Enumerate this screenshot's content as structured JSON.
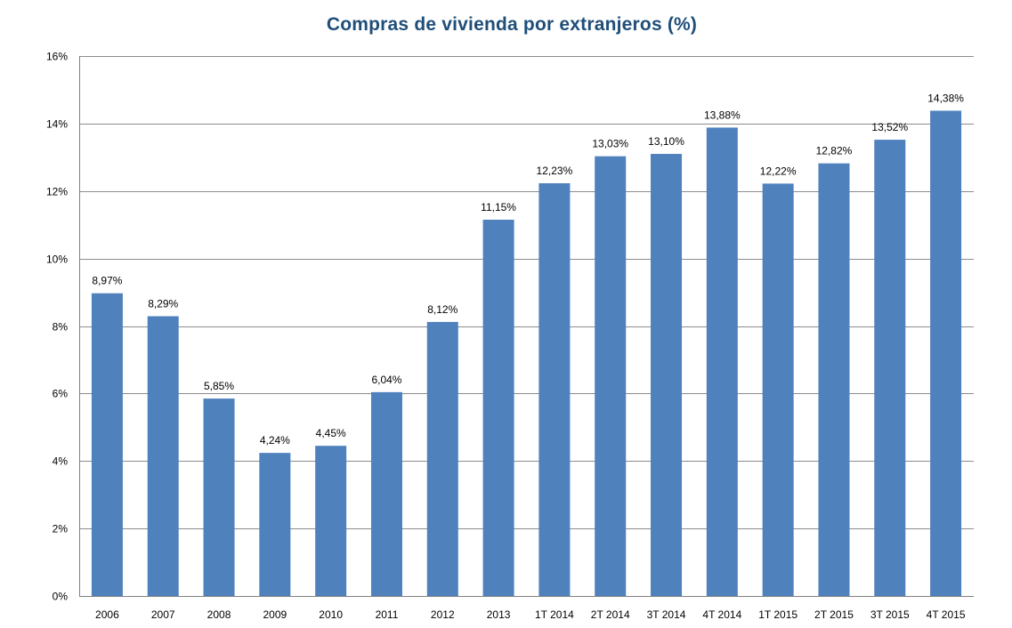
{
  "chart_data": {
    "type": "bar",
    "title": "Compras de vivienda por extranjeros (%)",
    "xlabel": "",
    "ylabel": "",
    "ylim": [
      0,
      16
    ],
    "y_ticks": [
      0,
      2,
      4,
      6,
      8,
      10,
      12,
      14,
      16
    ],
    "y_tick_labels": [
      "0%",
      "2%",
      "4%",
      "6%",
      "8%",
      "10%",
      "12%",
      "14%",
      "16%"
    ],
    "grid": true,
    "legend": "none",
    "categories": [
      "2006",
      "2007",
      "2008",
      "2009",
      "2010",
      "2011",
      "2012",
      "2013",
      "1T 2014",
      "2T 2014",
      "3T 2014",
      "4T 2014",
      "1T 2015",
      "2T 2015",
      "3T 2015",
      "4T 2015"
    ],
    "values": [
      8.97,
      8.29,
      5.85,
      4.24,
      4.45,
      6.04,
      8.12,
      11.15,
      12.23,
      13.03,
      13.1,
      13.88,
      12.22,
      12.82,
      13.52,
      14.38
    ],
    "data_labels": [
      "8,97%",
      "8,29%",
      "5,85%",
      "4,24%",
      "4,45%",
      "6,04%",
      "8,12%",
      "11,15%",
      "12,23%",
      "13,03%",
      "13,10%",
      "13,88%",
      "12,22%",
      "12,82%",
      "13,52%",
      "14,38%"
    ],
    "colors": {
      "bar": "#4f81bd",
      "title": "#1f4e79",
      "grid": "#8c8c8c"
    }
  }
}
